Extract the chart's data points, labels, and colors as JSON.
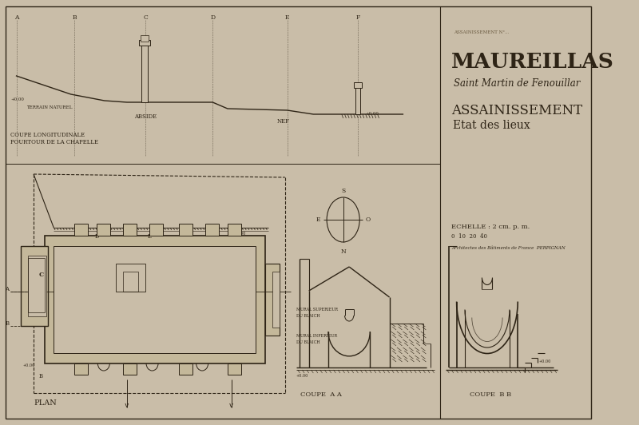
{
  "bg_color": "#c9bda8",
  "line_color": "#2e2416",
  "title_main": "MAUREILLAS",
  "title_sub": "Saint Martin de Fenouillar",
  "title_assain": "ASSAINISSEMENT",
  "title_etat": "Etat des lieux",
  "scale_text": "ECHELLE : 2 cm. p. m.",
  "scale_nums": "0  10  20  40",
  "arch_text": "Architectes des Bâtiments de France  PERPIGNAN",
  "top_label": "COUPE LONGITUDINALE\nPOURTOUR DE LA CHAPELLE",
  "abside_label": "ABSIDE",
  "nef_label": "NEF",
  "plan_label": "PLAN",
  "coupe_aa_label": "COUPE  A A",
  "coupe_bb_label": "COUPE  B B",
  "ref_text": "ASSAINISSEMENT N°...",
  "terrain_label": "TERRAIN NATUREL"
}
